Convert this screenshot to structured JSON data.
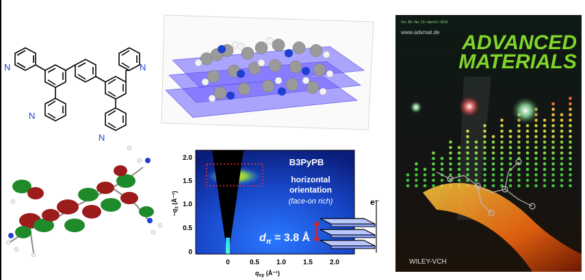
{
  "molecule": {
    "atom_label": "N"
  },
  "giwaxs": {
    "sample": "B3PyPB",
    "orientation_line1": "horizontal",
    "orientation_line2": "orientation",
    "orientation_note": "(face-on rich)",
    "d_label": "d",
    "d_sub": "π",
    "d_value": " = 3.8 Å",
    "electron_label": "e⁻",
    "xlabel": "q",
    "xlabel_sub": "xy",
    "xlabel_unit": " (Å⁻¹)",
    "ylabel": "−q",
    "ylabel_sub": "z",
    "ylabel_unit": " (Å⁻¹)",
    "y_ticks": [
      "2.0",
      "1.5",
      "1.0",
      "0.5",
      "0"
    ],
    "x_ticks": [
      "0",
      "0.5",
      "1.0",
      "1.5",
      "2.0"
    ]
  },
  "cover": {
    "header_line": "Vol. 28 • No. 13 • April 6 • 2016",
    "url": "www.advmat.de",
    "title_line1": "ADVANCED",
    "title_line2": "MATERIALS",
    "publisher": "WILEY-VCH"
  },
  "colors": {
    "bond": "#000000",
    "nitrogen": "#1f3fd0",
    "plane": "#6a5cff",
    "orbital_red": "#9c1b1b",
    "orbital_green": "#1f8a2a",
    "cover_title": "#7fd62a",
    "arrow": "#e02020"
  }
}
